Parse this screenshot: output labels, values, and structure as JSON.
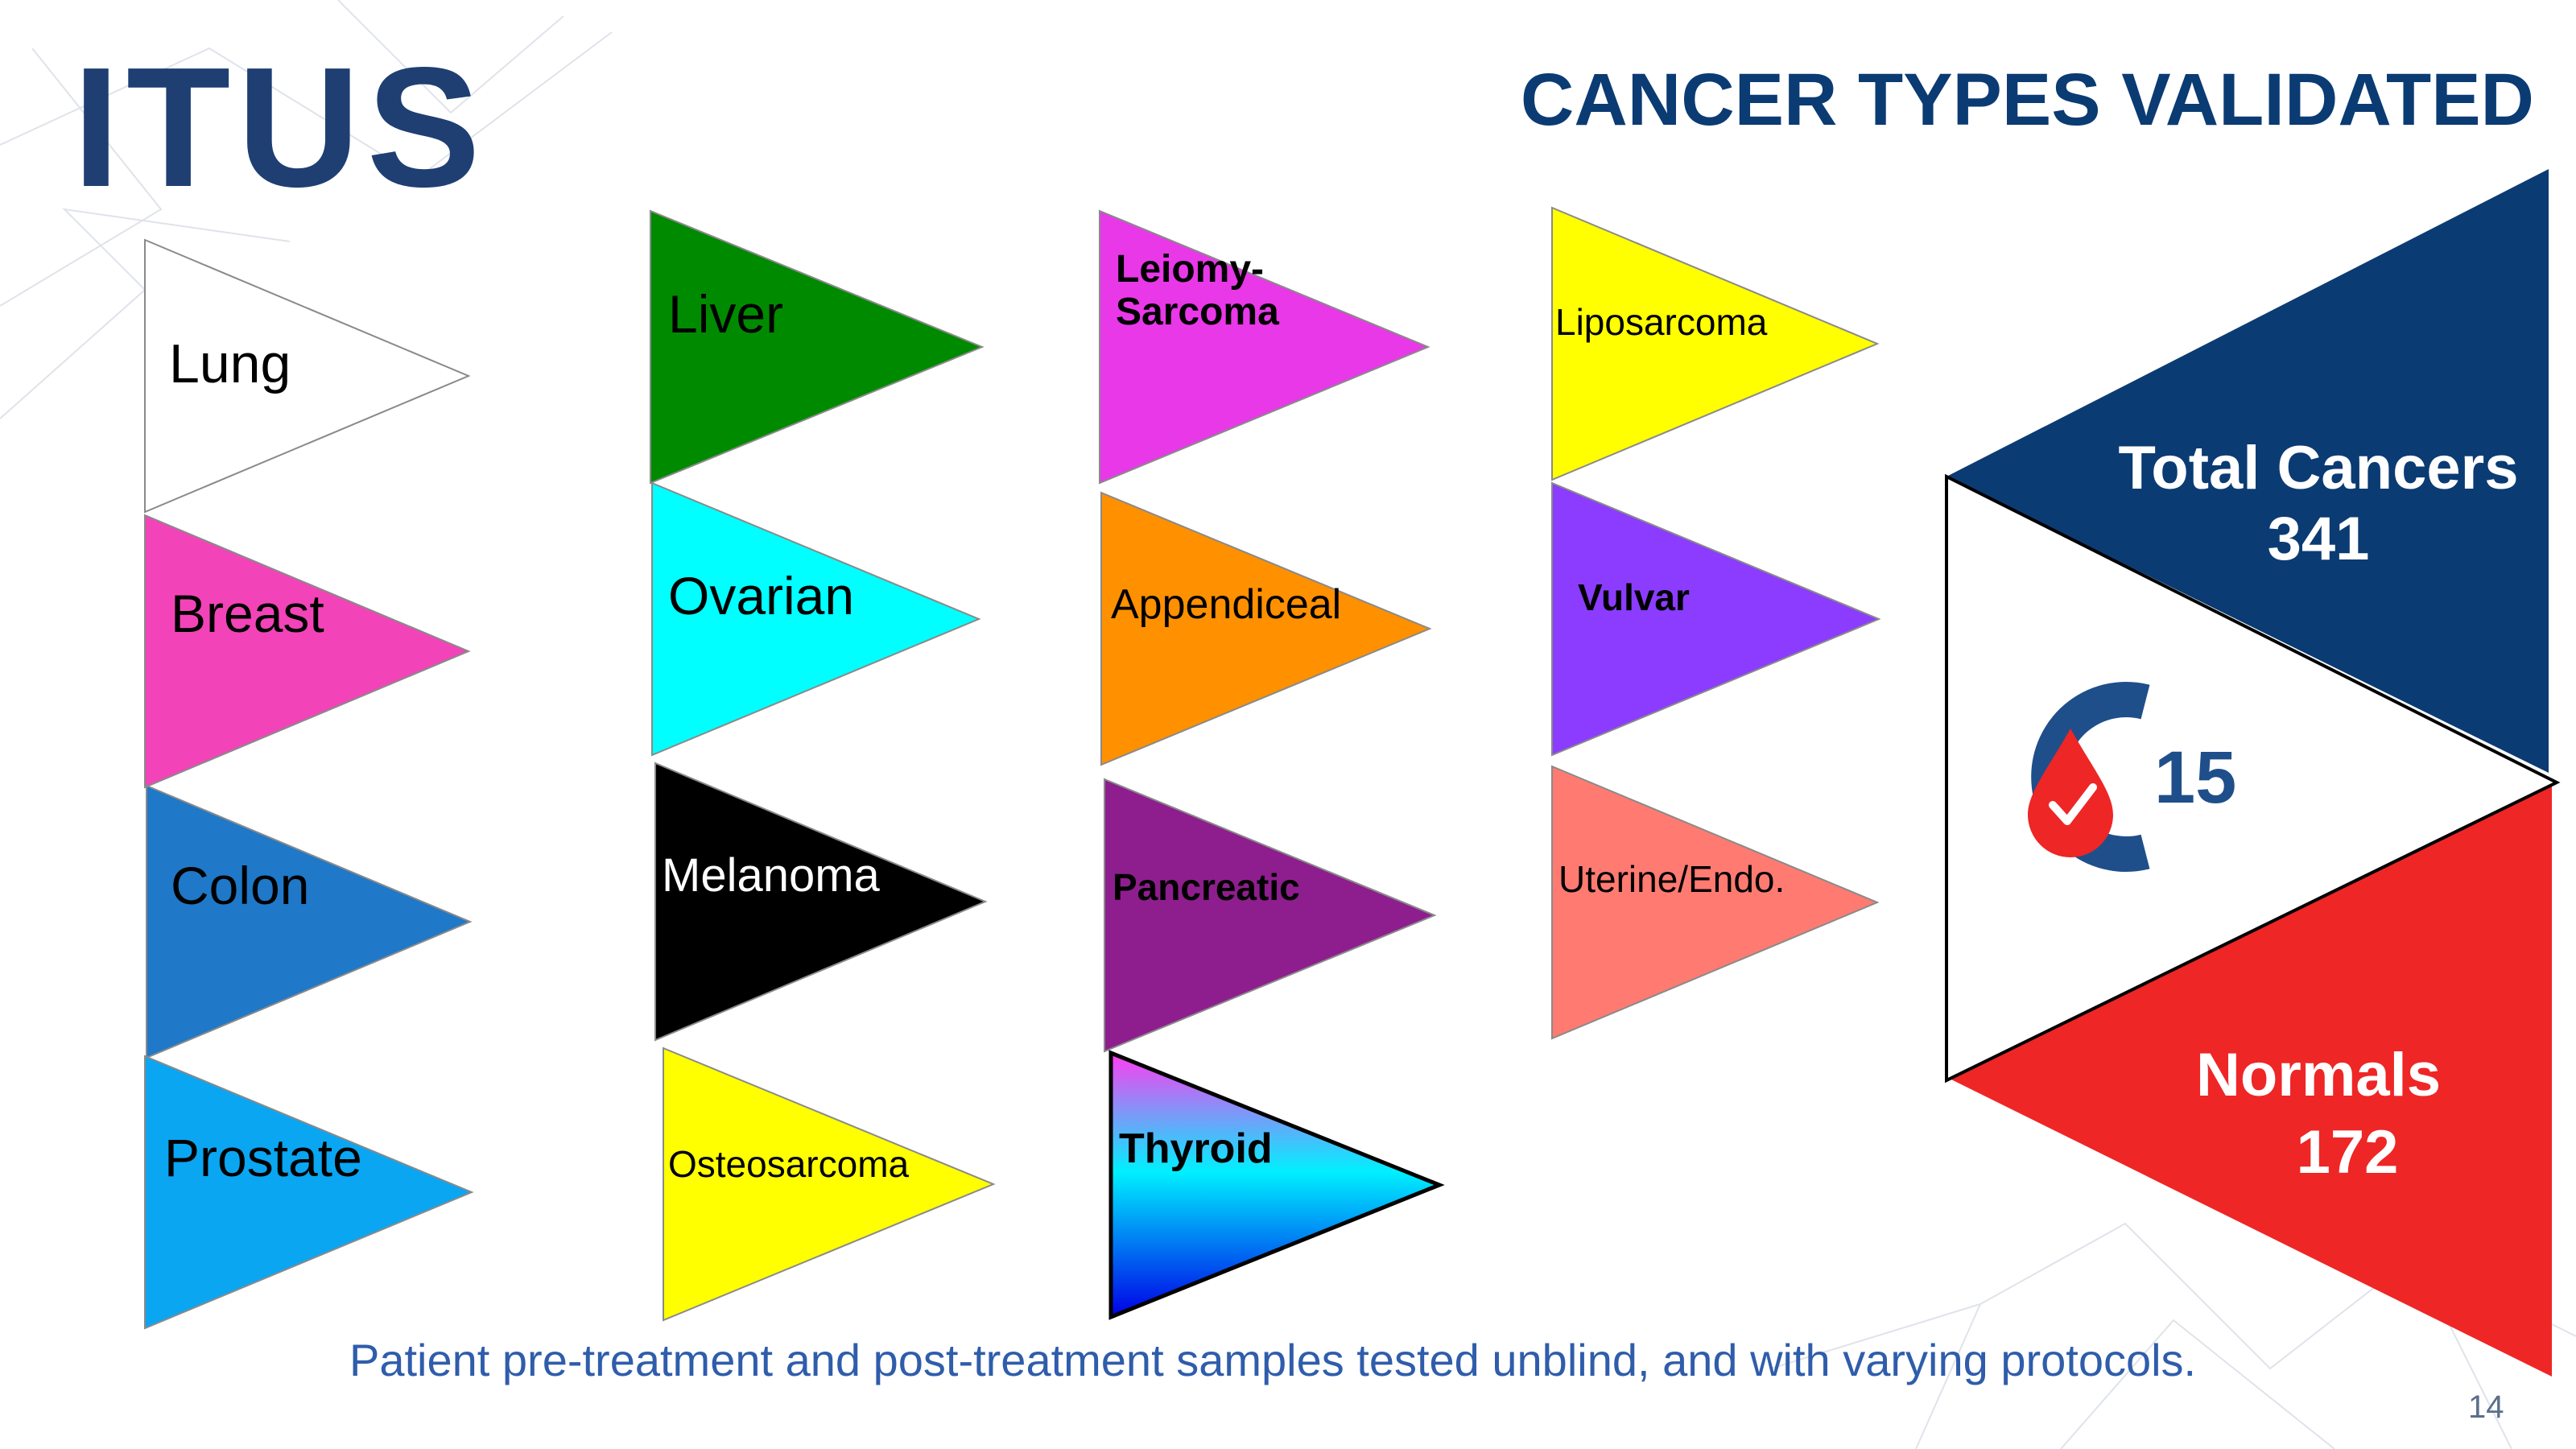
{
  "brand": {
    "logo_text": "ITUS"
  },
  "slide": {
    "title": "CANCER TYPES VALIDATED",
    "footer": "Patient pre-treatment and post-treatment samples tested unblind, and with varying protocols.",
    "page_number": "14"
  },
  "cancer_types": [
    {
      "label": "Lung",
      "color": "#ffffff",
      "text_color": "#000000",
      "bold": false
    },
    {
      "label": "Breast",
      "color": "#f244b8",
      "text_color": "#000000",
      "bold": false
    },
    {
      "label": "Colon",
      "color": "#1f78c8",
      "text_color": "#000000",
      "bold": false
    },
    {
      "label": "Prostate",
      "color": "#0aa6f2",
      "text_color": "#000000",
      "bold": false
    },
    {
      "label": "Liver",
      "color": "#008a00",
      "text_color": "#000000",
      "bold": false
    },
    {
      "label": "Ovarian",
      "color": "#00ffff",
      "text_color": "#000000",
      "bold": false
    },
    {
      "label": "Melanoma",
      "color": "#000000",
      "text_color": "#ffffff",
      "bold": false
    },
    {
      "label": "Osteosarcoma",
      "color": "#ffff00",
      "text_color": "#000000",
      "bold": false
    },
    {
      "label": "Leiomy-\nSarcoma",
      "color": "#e838e8",
      "text_color": "#000000",
      "bold": true
    },
    {
      "label": "Appendiceal",
      "color": "#ff9000",
      "text_color": "#000000",
      "bold": false
    },
    {
      "label": "Pancreatic",
      "color": "#8e1e8e",
      "text_color": "#000000",
      "bold": true
    },
    {
      "label": "Thyroid",
      "color": "gradient-magenta-cyan-blue",
      "text_color": "#000000",
      "bold": true
    },
    {
      "label": "Liposarcoma",
      "color": "#ffff00",
      "text_color": "#000000",
      "bold": false
    },
    {
      "label": "Vulvar",
      "color": "#8b3cff",
      "text_color": "#000000",
      "bold": true
    },
    {
      "label": "Uterine/Endo.",
      "color": "#ff7b72",
      "text_color": "#000000",
      "bold": false
    }
  ],
  "summary": {
    "total_label": "Total Cancers",
    "total_value": "341",
    "total_color": "#0b3b73",
    "normals_label": "Normals",
    "normals_value": "172",
    "normals_color": "#ee2626",
    "center_icon": "c15-blood-drop-check-icon",
    "center_value": "15"
  }
}
